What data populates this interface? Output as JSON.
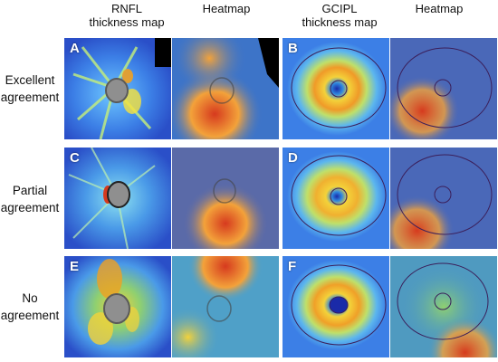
{
  "headers": {
    "rnfl": "RNFL\nthickness map",
    "heatmap1": "Heatmap",
    "gcipl": "GCIPL\nthickness map",
    "heatmap2": "Heatmap"
  },
  "rows": [
    {
      "label": "Excellent\nagreement",
      "letters": [
        "A",
        "B"
      ]
    },
    {
      "label": "Partial\nagreement",
      "letters": [
        "C",
        "D"
      ]
    },
    {
      "label": "No\nagreement",
      "letters": [
        "E",
        "F"
      ]
    }
  ],
  "colors": {
    "background_blue": "#2a5fd8",
    "heat_red": "#d63a1e",
    "heat_yellow": "#f3d23a",
    "disc_gray": "#8f8f8f",
    "ellipse_line": "#3b1f5a"
  }
}
